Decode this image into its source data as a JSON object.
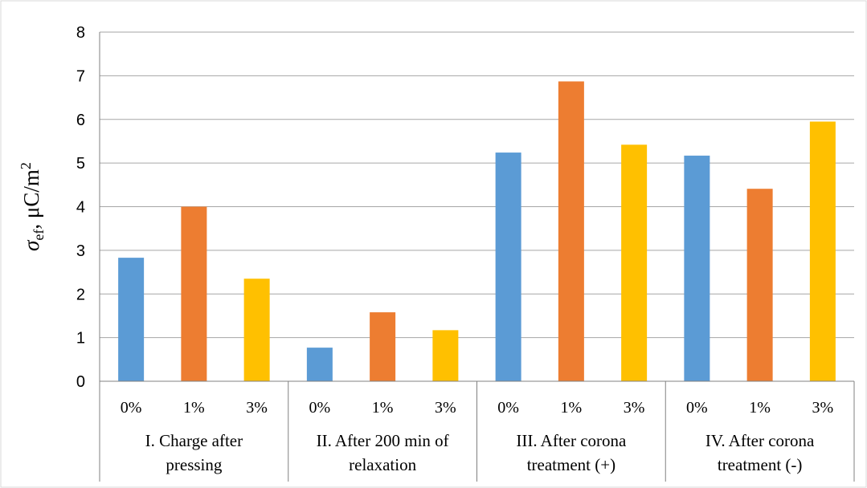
{
  "chart_data": {
    "type": "bar",
    "title": "",
    "ylabel": {
      "symbol": "σ",
      "subscript": "ef",
      "unit": ", μC/m",
      "superscript": "2"
    },
    "ylim": [
      0,
      8
    ],
    "yticks": [
      "0",
      "1",
      "2",
      "3",
      "4",
      "5",
      "6",
      "7",
      "8"
    ],
    "grid": true,
    "groups": [
      {
        "label_lines": [
          "I. Charge after",
          "pressing"
        ],
        "categories": [
          "0%",
          "1%",
          "3%"
        ],
        "values": [
          2.83,
          4.0,
          2.35
        ]
      },
      {
        "label_lines": [
          "II. After 200 min of",
          "relaxation"
        ],
        "categories": [
          "0%",
          "1%",
          "3%"
        ],
        "values": [
          0.77,
          1.58,
          1.17
        ]
      },
      {
        "label_lines": [
          "III. After corona",
          "treatment (+)"
        ],
        "categories": [
          "0%",
          "1%",
          "3%"
        ],
        "values": [
          5.24,
          6.87,
          5.42
        ]
      },
      {
        "label_lines": [
          "IV. After corona",
          "treatment (-)"
        ],
        "categories": [
          "0%",
          "1%",
          "3%"
        ],
        "values": [
          5.17,
          4.41,
          5.95
        ]
      }
    ],
    "colors": [
      "#5B9BD5",
      "#ED7D31",
      "#FFC000"
    ],
    "gridline_color": "#A6A6A6",
    "axis_color": "#808080"
  }
}
